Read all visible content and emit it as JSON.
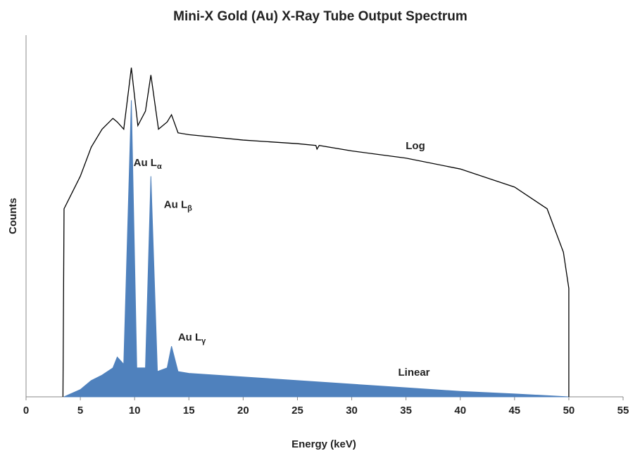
{
  "chart_data": {
    "type": "line",
    "title": "Mini-X Gold (Au) X-Ray Tube Output Spectrum",
    "xlabel": "Energy (keV)",
    "ylabel": "Counts",
    "xlim": [
      0,
      55
    ],
    "xticks": [
      0,
      5,
      10,
      15,
      20,
      25,
      30,
      35,
      40,
      45,
      50,
      55
    ],
    "ylim": [
      0,
      100
    ],
    "series": [
      {
        "name": "Log",
        "color": "#000000",
        "fill": false,
        "x": [
          3.4,
          3.5,
          4,
          5,
          6,
          7,
          8,
          8.4,
          9,
          9.7,
          10.3,
          11,
          11.5,
          12.2,
          13,
          13.4,
          14,
          15,
          20,
          25,
          26.7,
          26.8,
          27,
          30,
          35,
          40,
          45,
          48,
          49.5,
          50,
          50
        ],
        "values": [
          0,
          52,
          55,
          61,
          69,
          74,
          77,
          76,
          74,
          91,
          75,
          79,
          89,
          74,
          76,
          78,
          73,
          72.5,
          71,
          70,
          69.5,
          68.5,
          69.5,
          68,
          66,
          63,
          58,
          52,
          40,
          30,
          0
        ]
      },
      {
        "name": "Linear",
        "color": "#4f81bd",
        "fill": true,
        "x": [
          3.5,
          5,
          6,
          7,
          8,
          8.4,
          9,
          9.7,
          10.2,
          11,
          11.5,
          12.1,
          13,
          13.4,
          14,
          15,
          20,
          25,
          30,
          35,
          40,
          45,
          50
        ],
        "values": [
          0,
          2,
          4.5,
          6,
          8,
          11,
          9,
          82,
          8,
          8,
          61,
          7,
          8,
          14,
          7,
          6.5,
          5.5,
          4.5,
          3.5,
          2.5,
          1.5,
          0.8,
          0
        ]
      }
    ],
    "annotations": [
      {
        "text": "Au L",
        "sub": "α",
        "x": 9.9,
        "y": 64.6
      },
      {
        "text": "Au L",
        "sub": "β",
        "x": 12.7,
        "y": 53
      },
      {
        "text": "Au L",
        "sub": "γ",
        "x": 14.0,
        "y": 16.3
      }
    ]
  }
}
